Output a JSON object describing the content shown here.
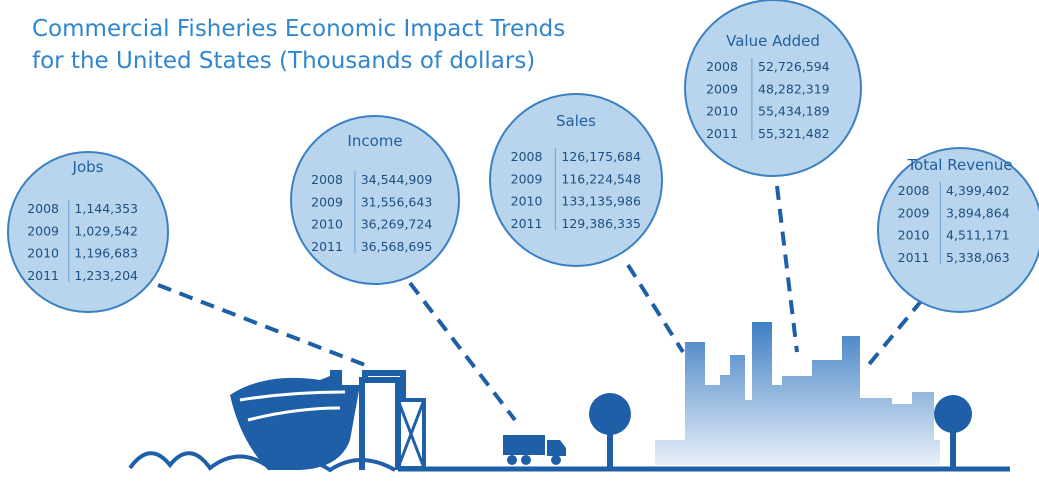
{
  "title": [
    "Commercial Fisheries Economic Impact Trends",
    "for the United States (Thousands of dollars)"
  ],
  "bubbles": [
    {
      "title": "Jobs",
      "rows": [
        [
          "2008",
          "1,144,353"
        ],
        [
          "2009",
          "1,029,542"
        ],
        [
          "2010",
          "1,196,683"
        ],
        [
          "2011",
          "1,233,204"
        ]
      ]
    },
    {
      "title": "Income",
      "rows": [
        [
          "2008",
          "34,544,909"
        ],
        [
          "2009",
          "31,556,643"
        ],
        [
          "2010",
          "36,269,724"
        ],
        [
          "2011",
          "36,568,695"
        ]
      ]
    },
    {
      "title": "Sales",
      "rows": [
        [
          "2008",
          "126,175,684"
        ],
        [
          "2009",
          "116,224,548"
        ],
        [
          "2010",
          "133,135,986"
        ],
        [
          "2011",
          "129,386,335"
        ]
      ]
    },
    {
      "title": "Value Added",
      "rows": [
        [
          "2008",
          "52,726,594"
        ],
        [
          "2009",
          "48,282,319"
        ],
        [
          "2010",
          "55,434,189"
        ],
        [
          "2011",
          "55,321,482"
        ]
      ]
    },
    {
      "title": "Total Revenue",
      "rows": [
        [
          "2008",
          "4,399,402"
        ],
        [
          "2009",
          "3,894,864"
        ],
        [
          "2010",
          "4,511,171"
        ],
        [
          "2011",
          "5,338,063"
        ]
      ]
    }
  ]
}
